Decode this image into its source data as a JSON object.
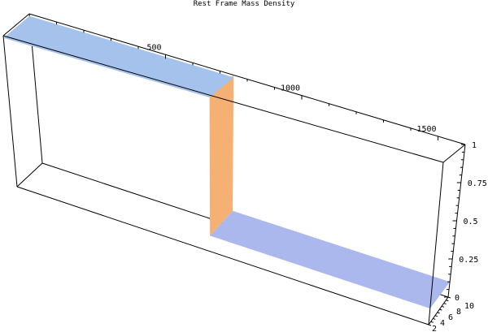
{
  "chart_data": {
    "type": "surface3d",
    "title": "Rest Frame Mass Density",
    "x_axis": {
      "range": [
        0,
        1600
      ],
      "ticks": [
        500,
        1000,
        1500
      ],
      "tick_labels": [
        "500",
        "1000",
        "1500"
      ]
    },
    "y_axis": {
      "range": [
        1,
        10
      ],
      "ticks": [
        2,
        4,
        6,
        8,
        10
      ],
      "tick_labels": [
        "2",
        "4",
        "6",
        "8",
        "10"
      ]
    },
    "z_axis": {
      "range": [
        0,
        1
      ],
      "ticks": [
        0,
        0.25,
        0.5,
        0.75,
        1
      ],
      "tick_labels": [
        "0",
        "0.25",
        "0.5",
        "0.75",
        "1"
      ]
    },
    "surface": {
      "description_type": "step",
      "step_x": 750,
      "high_value": 1.0,
      "low_value": 0.1
    },
    "colors": {
      "high_plateau": "#a4c2ec",
      "low_plateau": "#aab8ee",
      "step_face": "#f5b173",
      "box": "#000000"
    },
    "grid": false
  }
}
